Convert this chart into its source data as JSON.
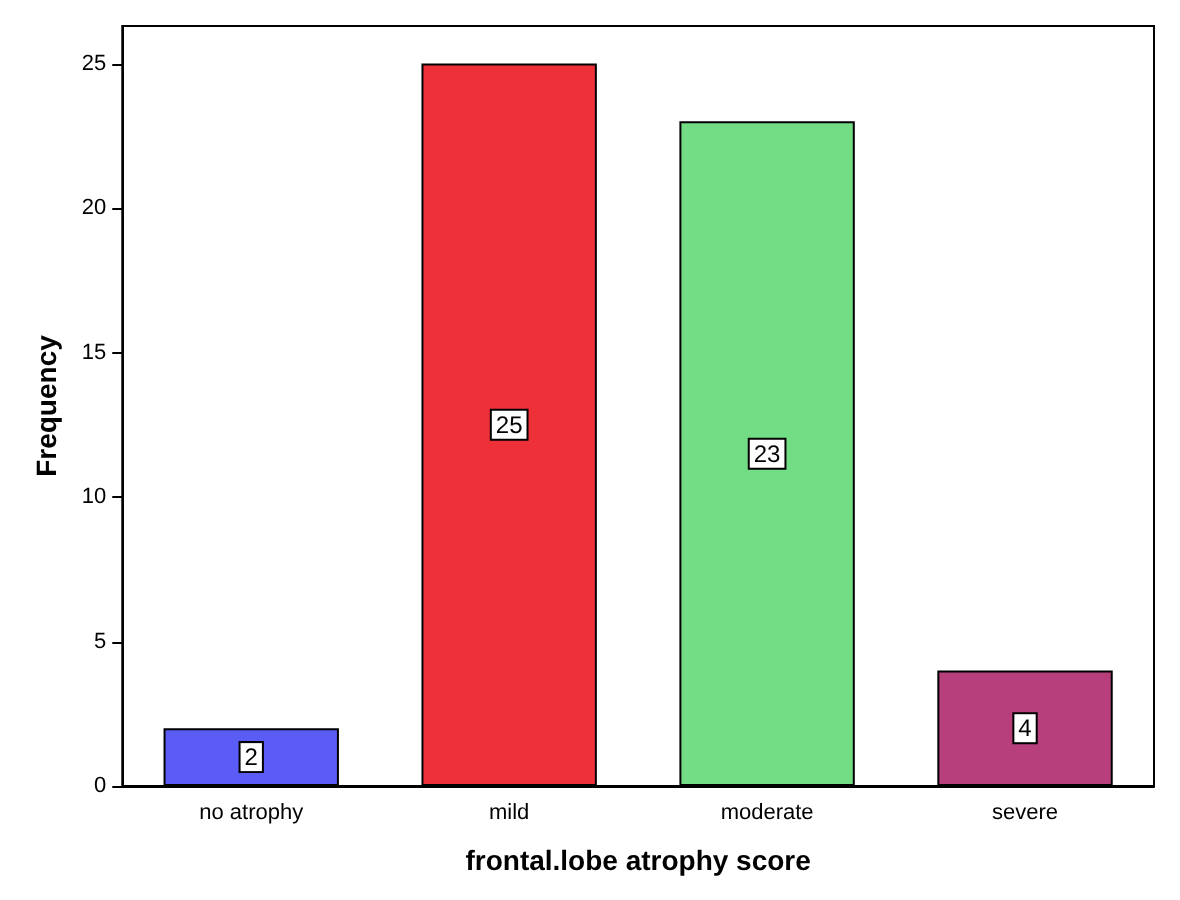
{
  "chart_data": {
    "type": "bar",
    "xlabel": "frontal.lobe atrophy score",
    "ylabel": "Frequency",
    "categories": [
      "no atrophy",
      "mild",
      "moderate",
      "severe"
    ],
    "values": [
      2,
      25,
      23,
      4
    ],
    "colors": [
      "#5a5cf5",
      "#ee3039",
      "#72dd84",
      "#b63f7c"
    ],
    "ylim": [
      0,
      26.3
    ],
    "yticks": [
      0,
      5,
      10,
      15,
      20,
      25
    ],
    "grid": false,
    "data_labels": true
  }
}
